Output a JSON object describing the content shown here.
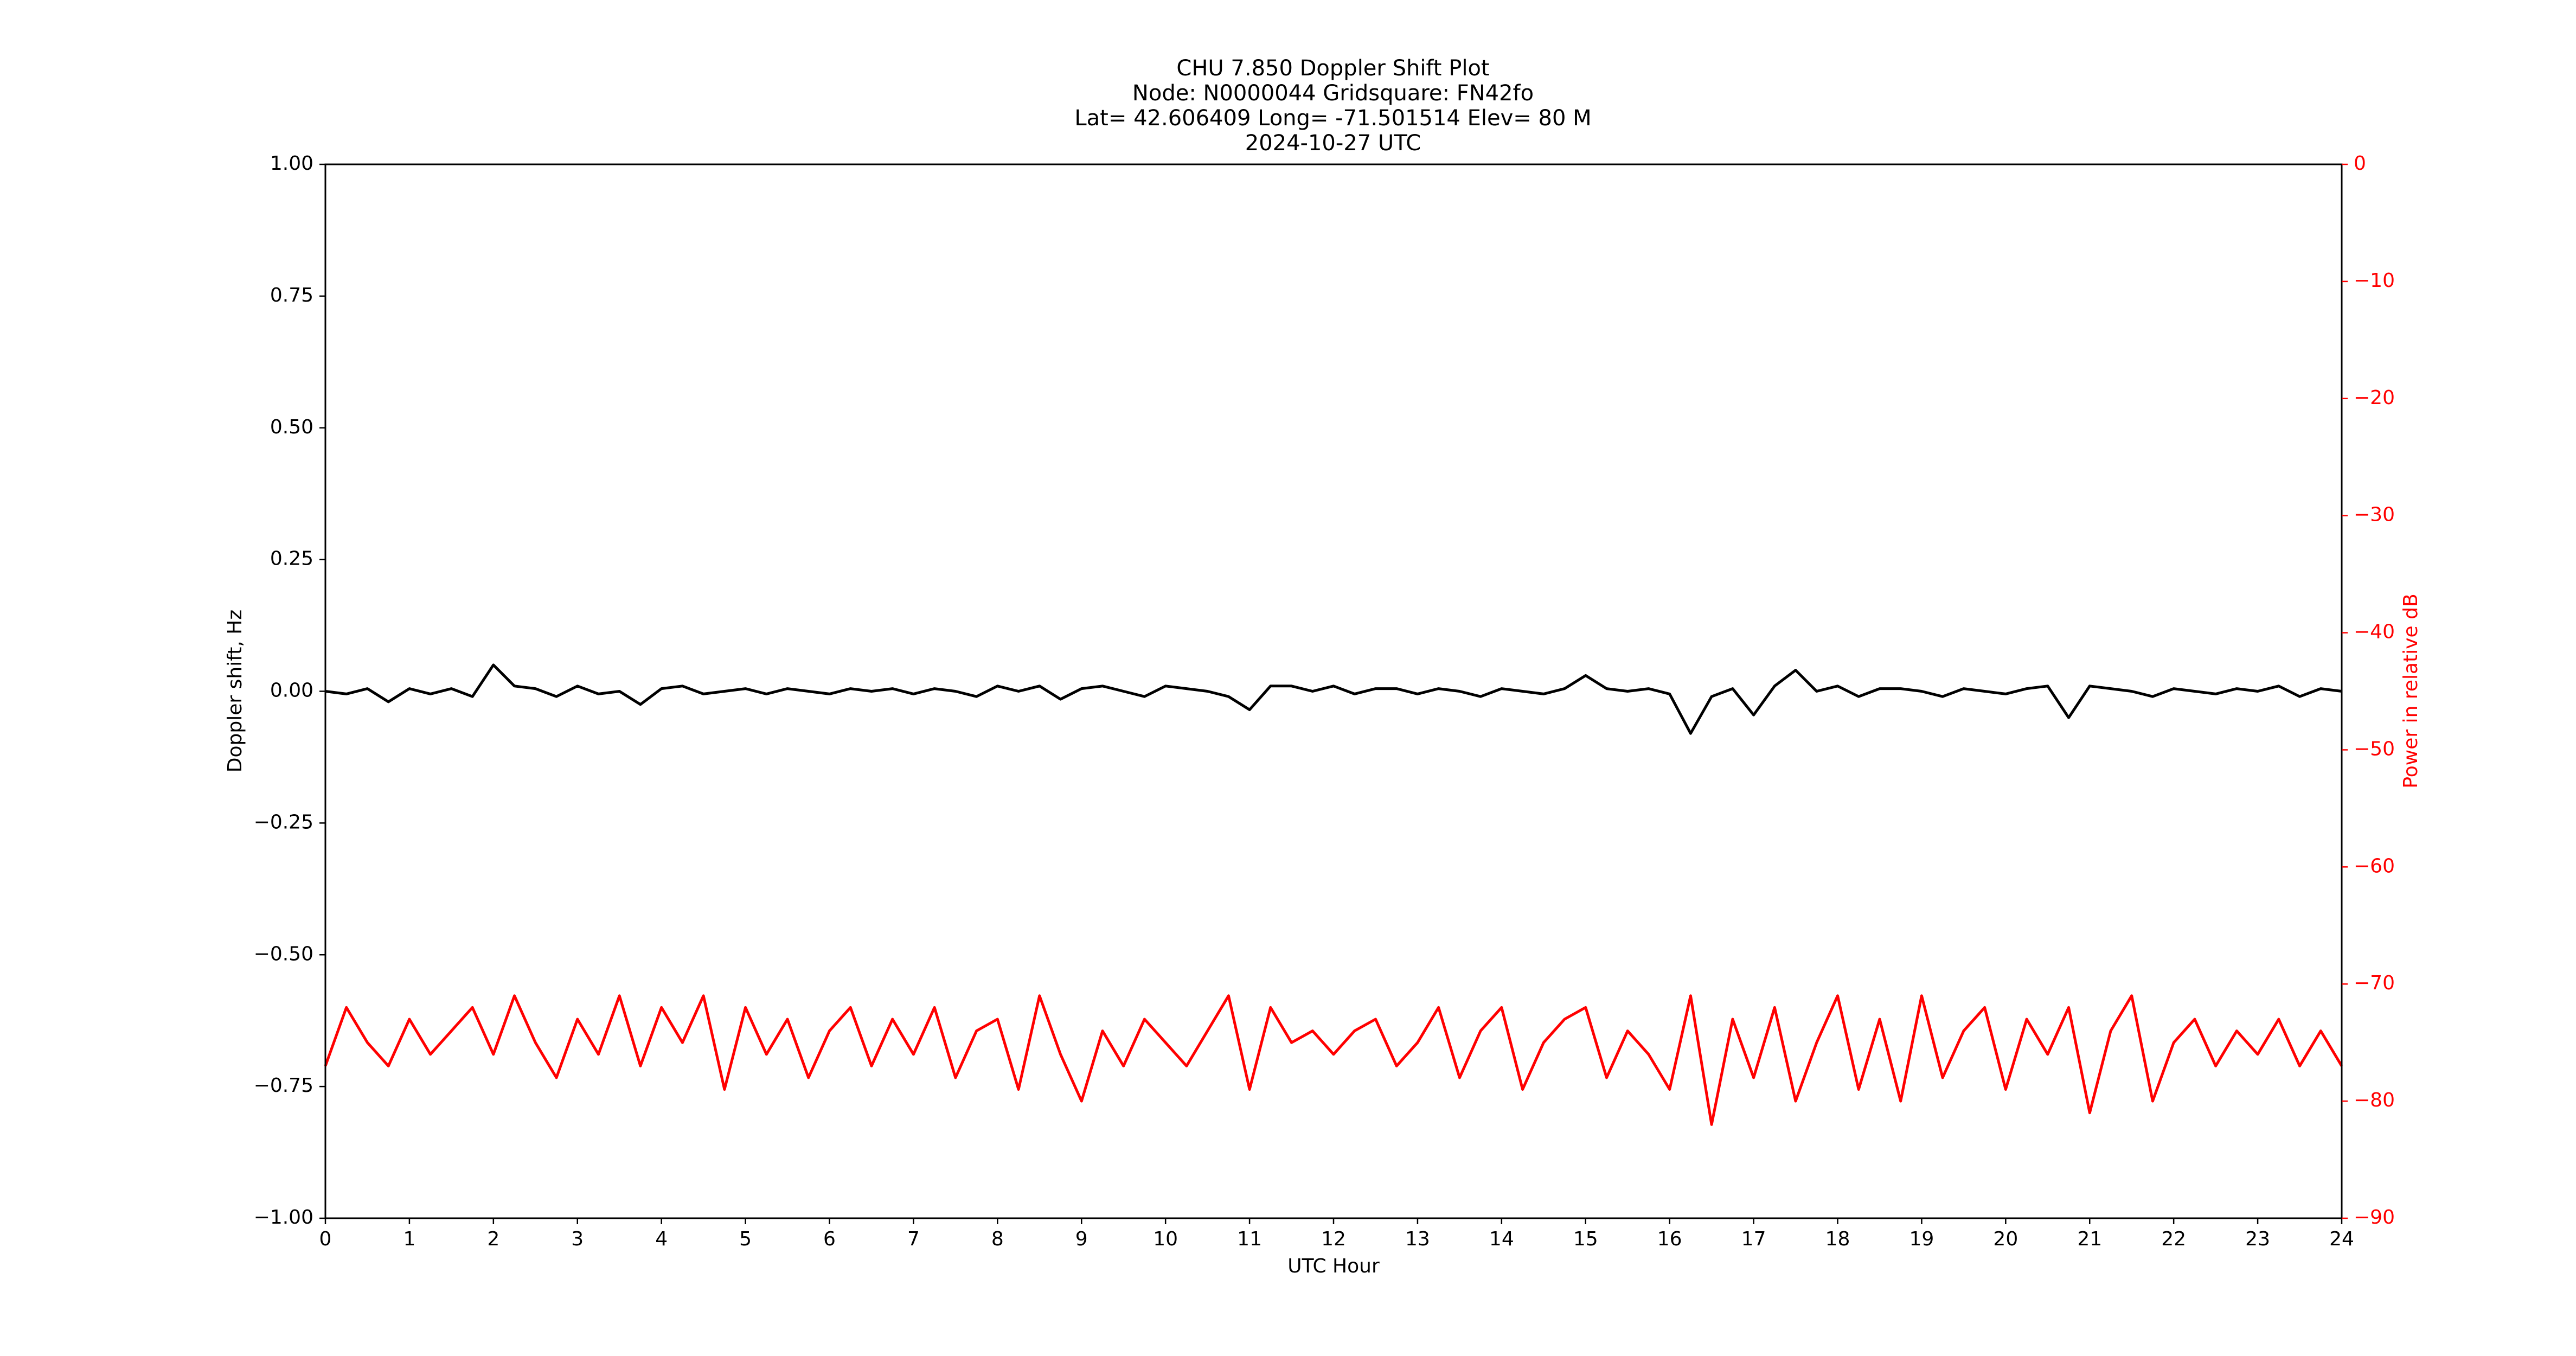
{
  "chart_data": {
    "type": "line",
    "title": [
      "CHU 7.850 Doppler Shift Plot",
      "Node:  N0000044     Gridsquare:  FN42fo",
      "Lat=   42.606409    Long= -71.501514    Elev= 80 M",
      "2024-10-27  UTC"
    ],
    "xlabel": "UTC Hour",
    "ylabel": "Doppler shift, Hz",
    "y2label": "Power in relative dB",
    "x": [
      0,
      0.25,
      0.5,
      0.75,
      1,
      1.25,
      1.5,
      1.75,
      2,
      2.25,
      2.5,
      2.75,
      3,
      3.25,
      3.5,
      3.75,
      4,
      4.25,
      4.5,
      4.75,
      5,
      5.25,
      5.5,
      5.75,
      6,
      6.25,
      6.5,
      6.75,
      7,
      7.25,
      7.5,
      7.75,
      8,
      8.25,
      8.5,
      8.75,
      9,
      9.25,
      9.5,
      9.75,
      10,
      10.25,
      10.5,
      10.75,
      11,
      11.25,
      11.5,
      11.75,
      12,
      12.25,
      12.5,
      12.75,
      13,
      13.25,
      13.5,
      13.75,
      14,
      14.25,
      14.5,
      14.75,
      15,
      15.25,
      15.5,
      15.75,
      16,
      16.25,
      16.5,
      16.75,
      17,
      17.25,
      17.5,
      17.75,
      18,
      18.25,
      18.5,
      18.75,
      19,
      19.25,
      19.5,
      19.75,
      20,
      20.25,
      20.5,
      20.75,
      21,
      21.25,
      21.5,
      21.75,
      22,
      22.25,
      22.5,
      22.75,
      23,
      23.25,
      23.5,
      23.75,
      24
    ],
    "series": [
      {
        "color": "#000000",
        "values": [
          0,
          -0.005,
          0.005,
          -0.02,
          0.005,
          -0.005,
          0.005,
          -0.01,
          0.05,
          0.01,
          0.005,
          -0.01,
          0.01,
          -0.005,
          0,
          -0.025,
          0.005,
          0.01,
          -0.005,
          0,
          0.005,
          -0.005,
          0.005,
          0,
          -0.005,
          0.005,
          0,
          0.005,
          -0.005,
          0.005,
          0,
          -0.01,
          0.01,
          0,
          0.01,
          -0.015,
          0.005,
          0.01,
          0,
          -0.01,
          0.01,
          0.005,
          0,
          -0.01,
          -0.035,
          0.01,
          0.01,
          0,
          0.01,
          -0.005,
          0.005,
          0.005,
          -0.005,
          0.005,
          0,
          -0.01,
          0.005,
          0,
          -0.005,
          0.005,
          0.03,
          0.005,
          0,
          0.005,
          -0.005,
          -0.08,
          -0.01,
          0.005,
          -0.045,
          0.01,
          0.04,
          0,
          0.01,
          -0.01,
          0.005,
          0.005,
          0,
          -0.01,
          0.005,
          0,
          -0.005,
          0.005,
          0.01,
          -0.05,
          0.01,
          0.005,
          0,
          -0.01,
          0.005,
          0,
          -0.005,
          0.005,
          0,
          0.01,
          -0.01,
          0.005,
          0
        ]
      },
      {
        "color": "#ff0000",
        "axis": "y2",
        "values": [
          -77,
          -72,
          -75,
          -77,
          -73,
          -76,
          -74,
          -72,
          -76,
          -71,
          -75,
          -78,
          -73,
          -76,
          -71,
          -77,
          -72,
          -75,
          -71,
          -79,
          -72,
          -76,
          -73,
          -78,
          -74,
          -72,
          -77,
          -73,
          -76,
          -72,
          -78,
          -74,
          -73,
          -79,
          -71,
          -76,
          -80,
          -74,
          -77,
          -73,
          -75,
          -77,
          -74,
          -71,
          -79,
          -72,
          -75,
          -74,
          -76,
          -74,
          -73,
          -77,
          -75,
          -72,
          -78,
          -74,
          -72,
          -79,
          -75,
          -73,
          -72,
          -78,
          -74,
          -76,
          -79,
          -71,
          -82,
          -73,
          -78,
          -72,
          -80,
          -75,
          -71,
          -79,
          -73,
          -80,
          -71,
          -78,
          -74,
          -72,
          -79,
          -73,
          -76,
          -72,
          -81,
          -74,
          -71,
          -80,
          -75,
          -73,
          -77,
          -74,
          -76,
          -73,
          -77,
          -74,
          -77
        ]
      }
    ],
    "xlim": [
      0,
      24
    ],
    "xticks": [
      0,
      1,
      2,
      3,
      4,
      5,
      6,
      7,
      8,
      9,
      10,
      11,
      12,
      13,
      14,
      15,
      16,
      17,
      18,
      19,
      20,
      21,
      22,
      23,
      24
    ],
    "ylim": [
      -1,
      1
    ],
    "yticks": [
      {
        "value": -1,
        "label": "−1.00"
      },
      {
        "value": -0.75,
        "label": "−0.75"
      },
      {
        "value": -0.5,
        "label": "−0.50"
      },
      {
        "value": -0.25,
        "label": "−0.25"
      },
      {
        "value": 0,
        "label": "0.00"
      },
      {
        "value": 0.25,
        "label": "0.25"
      },
      {
        "value": 0.5,
        "label": "0.50"
      },
      {
        "value": 0.75,
        "label": "0.75"
      },
      {
        "value": 1,
        "label": "1.00"
      }
    ],
    "y2lim": [
      -90,
      0
    ],
    "y2ticks": [
      {
        "value": -90,
        "label": "−90"
      },
      {
        "value": -80,
        "label": "−80"
      },
      {
        "value": -70,
        "label": "−70"
      },
      {
        "value": -60,
        "label": "−60"
      },
      {
        "value": -50,
        "label": "−50"
      },
      {
        "value": -40,
        "label": "−40"
      },
      {
        "value": -30,
        "label": "−30"
      },
      {
        "value": -20,
        "label": "−20"
      },
      {
        "value": -10,
        "label": "−10"
      },
      0
    ],
    "y2color": "#ff0000",
    "grid": false
  }
}
